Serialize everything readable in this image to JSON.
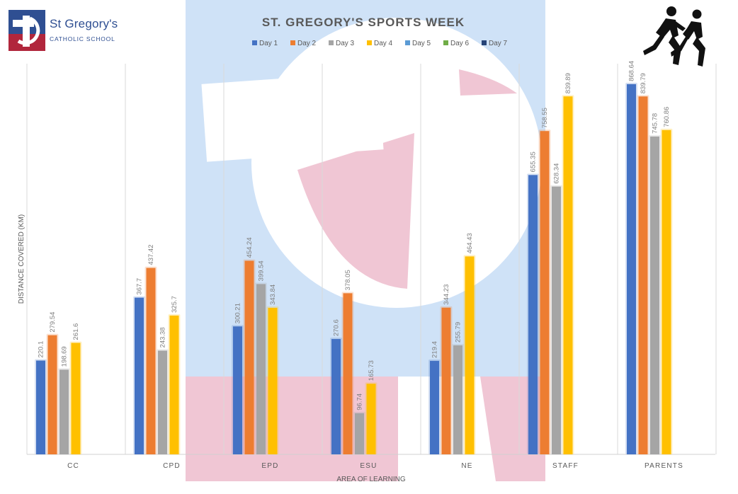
{
  "school": {
    "name": "St Gregory's",
    "subtitle": "CATHOLIC SCHOOL"
  },
  "colors": {
    "day1": "#4472c4",
    "day2": "#ed7d31",
    "day3": "#a5a5a5",
    "day4": "#ffc000",
    "day5": "#5b9bd5",
    "day6": "#70ad47",
    "day7": "#264478",
    "watermark_blue": "#cfe2f7",
    "watermark_pink": "#f0c6d4",
    "title": "#595959",
    "axis_text": "#595959"
  },
  "chart_data": {
    "type": "bar",
    "title": "ST. GREGORY'S SPORTS WEEK",
    "xlabel": "AREA OF LEARNING",
    "ylabel": "DISTANCE COVERED (KM)",
    "ylim": [
      0,
      900
    ],
    "grid": "vertical category separators",
    "legend_position": "top-center",
    "categories": [
      "CC",
      "CPD",
      "EPD",
      "ESU",
      "NE",
      "STAFF",
      "PARENTS"
    ],
    "series": [
      {
        "name": "Day 1",
        "values": [
          220.1,
          367.7,
          300.21,
          270.6,
          219.4,
          655.35,
          868.64
        ]
      },
      {
        "name": "Day 2",
        "values": [
          279.54,
          437.42,
          454.24,
          378.05,
          344.23,
          758.55,
          839.79
        ]
      },
      {
        "name": "Day 3",
        "values": [
          198.69,
          243.38,
          399.54,
          96.74,
          255.79,
          628.34,
          745.78
        ]
      },
      {
        "name": "Day 4",
        "values": [
          261.6,
          325.7,
          343.84,
          165.73,
          464.43,
          839.89,
          760.86
        ]
      },
      {
        "name": "Day 5",
        "values": [
          null,
          null,
          null,
          null,
          null,
          null,
          null
        ]
      },
      {
        "name": "Day 6",
        "values": [
          null,
          null,
          null,
          null,
          null,
          null,
          null
        ]
      },
      {
        "name": "Day 7",
        "values": [
          null,
          null,
          null,
          null,
          null,
          null,
          null
        ]
      }
    ]
  }
}
